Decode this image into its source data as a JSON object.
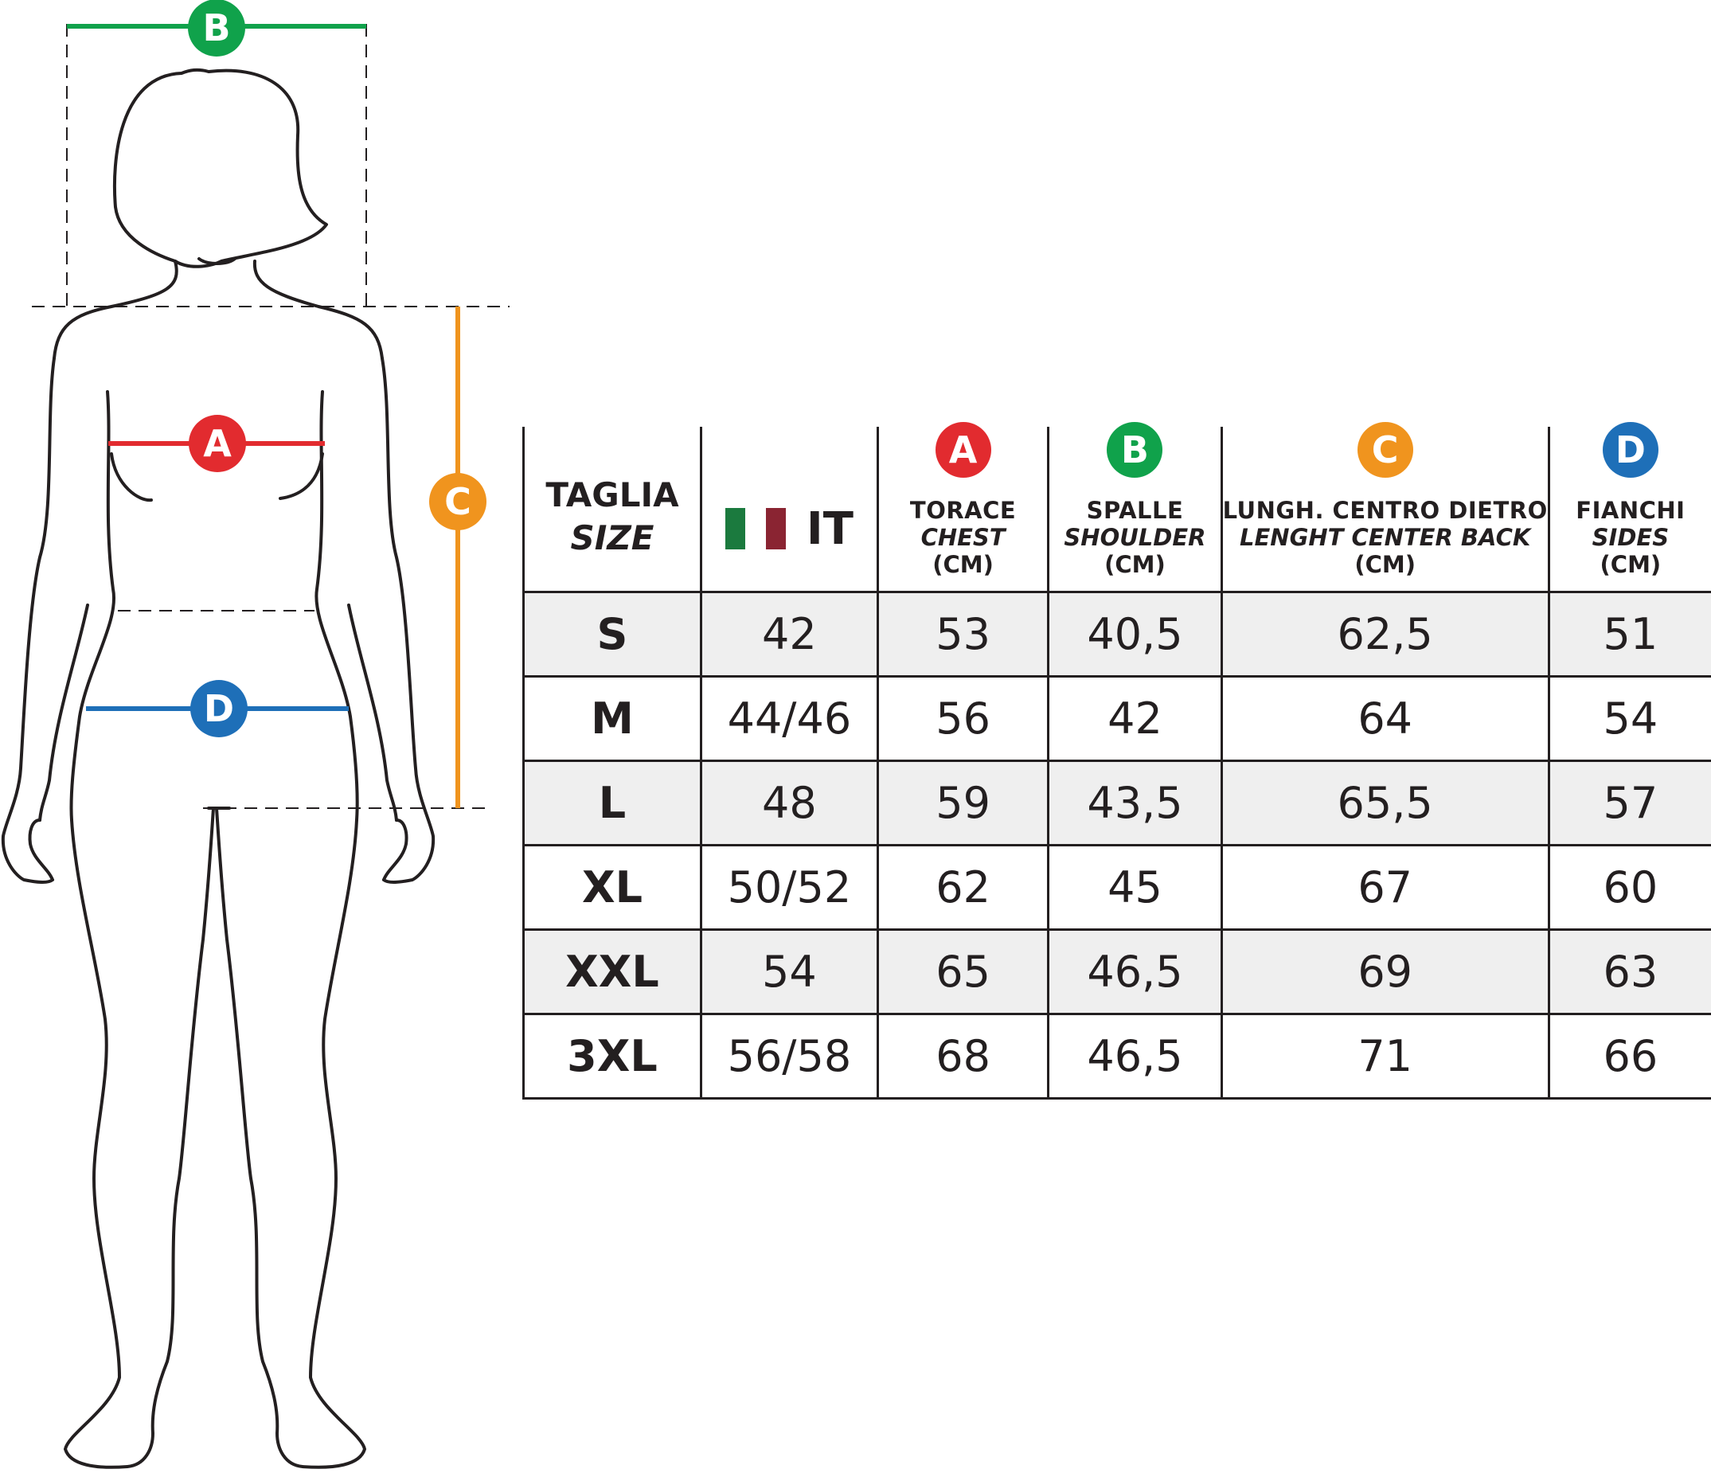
{
  "badges": {
    "A": {
      "letter": "A",
      "color": "#e22b2f"
    },
    "B": {
      "letter": "B",
      "color": "#10a24b"
    },
    "C": {
      "letter": "C",
      "color": "#f0941e"
    },
    "D": {
      "letter": "D",
      "color": "#1e6fb8"
    }
  },
  "flag_colors": [
    "#1b7a3e",
    "#ffffff",
    "#8a2432"
  ],
  "line_color": "#231f20",
  "table": {
    "headers": {
      "size": {
        "main": "TAGLIA",
        "sub": "SIZE"
      },
      "it": {
        "label": "IT"
      },
      "chest": {
        "badge": "A",
        "main": "TORACE",
        "sub": "CHEST",
        "unit": "(CM)"
      },
      "shoulder": {
        "badge": "B",
        "main": "SPALLE",
        "sub": "SHOULDER",
        "unit": "(CM)"
      },
      "length": {
        "badge": "C",
        "main": "LUNGH. CENTRO DIETRO",
        "sub": "LENGHT CENTER BACK",
        "unit": "(CM)"
      },
      "sides": {
        "badge": "D",
        "main": "FIANCHI",
        "sub": "SIDES",
        "unit": "(CM)"
      }
    },
    "rows": [
      {
        "size": "S",
        "it": "42",
        "chest": "53",
        "shoulder": "40,5",
        "length": "62,5",
        "sides": "51"
      },
      {
        "size": "M",
        "it": "44/46",
        "chest": "56",
        "shoulder": "42",
        "length": "64",
        "sides": "54"
      },
      {
        "size": "L",
        "it": "48",
        "chest": "59",
        "shoulder": "43,5",
        "length": "65,5",
        "sides": "57"
      },
      {
        "size": "XL",
        "it": "50/52",
        "chest": "62",
        "shoulder": "45",
        "length": "67",
        "sides": "60"
      },
      {
        "size": "XXL",
        "it": "54",
        "chest": "65",
        "shoulder": "46,5",
        "length": "69",
        "sides": "63"
      },
      {
        "size": "3XL",
        "it": "56/58",
        "chest": "68",
        "shoulder": "46,5",
        "length": "71",
        "sides": "66"
      }
    ]
  }
}
